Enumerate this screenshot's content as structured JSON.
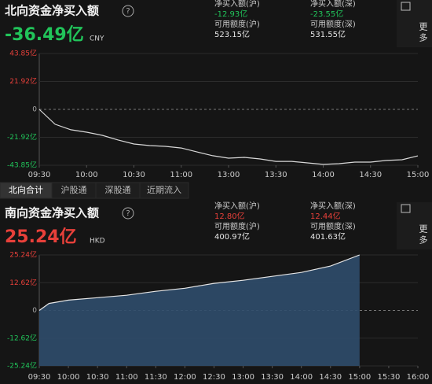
{
  "tabs": [
    "北向合计",
    "沪股通",
    "深股通",
    "近期流入"
  ],
  "up_color": "#e8403a",
  "down_color": "#21c45a",
  "chart_data": [
    {
      "type": "line",
      "title": "北向资金净买入额",
      "headline": "-36.49亿",
      "currency": "CNY",
      "more": "更多",
      "stats": [
        {
          "label": "净买入额(沪)",
          "value": "-12.93亿"
        },
        {
          "label": "净买入额(深)",
          "value": "-23.55亿"
        },
        {
          "label": "可用额度(沪)",
          "value": "523.15亿"
        },
        {
          "label": "可用额度(深)",
          "value": "531.55亿"
        }
      ],
      "x": [
        "09:30",
        "09:40",
        "09:50",
        "10:00",
        "10:10",
        "10:20",
        "10:30",
        "10:40",
        "10:50",
        "11:00",
        "11:10",
        "11:20",
        "11:30",
        "13:10",
        "13:20",
        "13:30",
        "13:40",
        "13:50",
        "14:00",
        "14:10",
        "14:20",
        "14:30",
        "14:40",
        "14:50",
        "15:00"
      ],
      "values": [
        0,
        -11.7,
        -16,
        -17.9,
        -20.4,
        -24,
        -27.2,
        -28.4,
        -29,
        -30.3,
        -33.4,
        -36.4,
        -38.3,
        -37.7,
        -38.9,
        -40.8,
        -40.8,
        -42,
        -43.2,
        -42.6,
        -41.4,
        -41.4,
        -40.1,
        -39.5,
        -36.49
      ],
      "color": "#d9d9d9",
      "area": false,
      "xlim": [
        "09:30",
        "15:00"
      ],
      "xbreak": [
        "11:30",
        "13:00"
      ],
      "xticks": [
        "09:30",
        "10:00",
        "10:30",
        "11:00",
        "13:00",
        "13:30",
        "14:00",
        "14:30",
        "15:00"
      ],
      "ylim": [
        -43.85,
        43.85
      ],
      "yticks": [
        {
          "value": 43.85,
          "label": "43.85亿"
        },
        {
          "value": 21.92,
          "label": "21.92亿"
        },
        0,
        {
          "value": -21.92,
          "label": "-21.92亿"
        },
        {
          "value": -43.85,
          "label": "-43.85亿"
        }
      ],
      "grid": true
    },
    {
      "type": "line",
      "title": "南向资金净买入额",
      "headline": "25.24亿",
      "currency": "HKD",
      "more": "更多",
      "stats": [
        {
          "label": "净买入额(沪)",
          "value": "12.80亿"
        },
        {
          "label": "净买入额(深)",
          "value": "12.44亿"
        },
        {
          "label": "可用额度(沪)",
          "value": "400.97亿"
        },
        {
          "label": "可用额度(深)",
          "value": "401.63亿"
        }
      ],
      "x": [
        "09:30",
        "09:40",
        "10:00",
        "10:30",
        "11:00",
        "11:30",
        "12:00",
        "12:30",
        "13:00",
        "13:30",
        "14:00",
        "14:30",
        "15:00"
      ],
      "values": [
        0,
        3.2,
        4.7,
        5.8,
        6.9,
        8.7,
        10.1,
        12.3,
        13.7,
        15.5,
        17.3,
        20.2,
        25.24
      ],
      "color": "#e6e6e6",
      "area": true,
      "area_color": "#2f4d6b",
      "xlim": [
        "09:30",
        "16:00"
      ],
      "xticks": [
        "09:30",
        "10:00",
        "10:30",
        "11:00",
        "11:30",
        "12:00",
        "12:30",
        "13:00",
        "13:30",
        "14:00",
        "14:30",
        "15:00",
        "15:30",
        "16:00"
      ],
      "ylim": [
        -25.24,
        25.24
      ],
      "yticks": [
        {
          "value": 25.24,
          "label": "25.24亿"
        },
        {
          "value": 12.62,
          "label": "12.62亿"
        },
        0,
        {
          "value": -12.62,
          "label": "-12.62亿"
        },
        {
          "value": -25.24,
          "label": "-25.24亿"
        }
      ],
      "grid": true
    }
  ]
}
